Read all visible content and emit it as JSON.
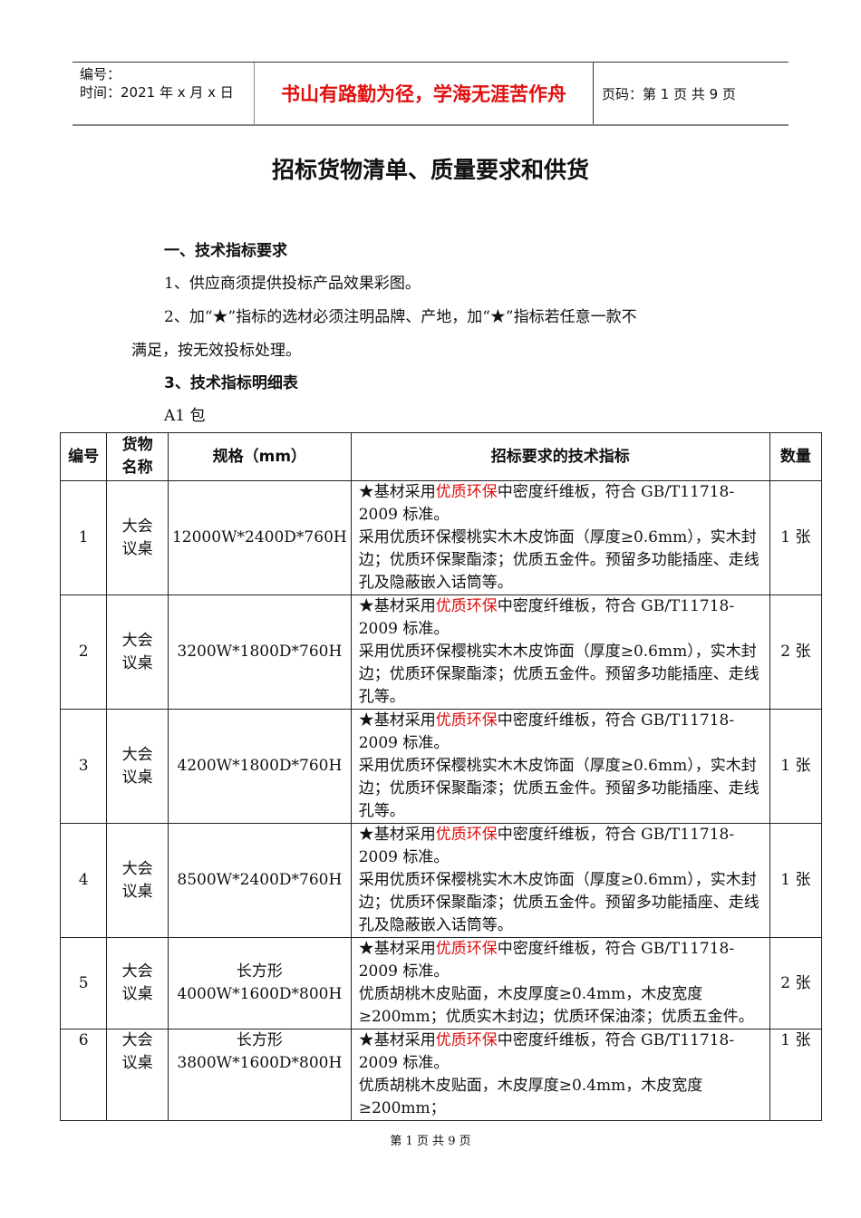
{
  "header": {
    "number_label": "编号：",
    "date_label": "时间：2021 年 x 月 x 日",
    "motto": "书山有路勤为径，学海无涯苦作舟",
    "page_info": "页码：第 1 页  共 9 页"
  },
  "title": "招标货物清单、质量要求和供货",
  "section1": "一、技术指标要求",
  "para1": "1、供应商须提供投标产品效果彩图。",
  "para2a": "2、加“★”指标的选材必须注明品牌、产地，加“★”指标若任意一款不",
  "para2b": "满足，按无效投标处理。",
  "section3": "3、技术指标明细表",
  "package": "A1 包",
  "table": {
    "headers": [
      "编号",
      "货物名称",
      "规格（mm）",
      "招标要求的技术指标",
      "数量"
    ],
    "rows": [
      {
        "no": "1",
        "name": "大会议桌",
        "spec_size": "12000W*2400D*760H",
        "pre": "★基材采用",
        "red": "优质环保",
        "post": "中密度纤维板，符合 GB/T11718-2009 标准。",
        "rest": "采用优质环保樱桃实木木皮饰面（厚度≥0.6mm），实木封边；优质环保聚酯漆；优质五金件。预留多功能插座、走线孔及隐蔽嵌入话筒等。",
        "qty": "1 张"
      },
      {
        "no": "2",
        "name": "大会议桌",
        "spec_size": "3200W*1800D*760H",
        "pre": "★基材采用",
        "red": "优质环保",
        "post": "中密度纤维板，符合 GB/T11718-2009 标准。",
        "rest": "采用优质环保樱桃实木木皮饰面（厚度≥0.6mm），实木封边；优质环保聚酯漆；优质五金件。预留多功能插座、走线孔等。",
        "qty": "2 张"
      },
      {
        "no": "3",
        "name": "大会议桌",
        "spec_size": "4200W*1800D*760H",
        "pre": "★基材采用",
        "red": "优质环保",
        "post": "中密度纤维板，符合 GB/T11718-2009 标准。",
        "rest": "采用优质环保樱桃实木木皮饰面（厚度≥0.6mm），实木封边；优质环保聚酯漆；优质五金件。预留多功能插座、走线孔等。",
        "qty": "1 张"
      },
      {
        "no": "4",
        "name": "大会议桌",
        "spec_size": "8500W*2400D*760H",
        "pre": "★基材采用",
        "red": "优质环保",
        "post": "中密度纤维板，符合 GB/T11718-2009 标准。",
        "rest": "采用优质环保樱桃实木木皮饰面（厚度≥0.6mm），实木封边；优质环保聚酯漆；优质五金件。预留多功能插座、走线孔及隐蔽嵌入话筒等。",
        "qty": "1 张"
      },
      {
        "no": "5",
        "name": "大会议桌",
        "spec_size": "长方形 4000W*1600D*800H",
        "pre": "★基材采用",
        "red": "优质环保",
        "post": "中密度纤维板，符合 GB/T11718-2009 标准。",
        "rest": "优质胡桃木皮贴面，木皮厚度≥0.4mm，木皮宽度≥200mm；优质实木封边；优质环保油漆；优质五金件。",
        "qty": "2 张"
      },
      {
        "no": "6",
        "name": "大会议桌",
        "spec_size": "长方形 3800W*1600D*800H",
        "pre": "★基材采用",
        "red": "优质环保",
        "post": "中密度纤维板，符合 GB/T11718-2009 标准。",
        "rest": "优质胡桃木皮贴面，木皮厚度≥0.4mm，木皮宽度≥200mm；",
        "qty": "1 张"
      }
    ]
  },
  "footer": "第 1 页 共 9 页",
  "colors": {
    "accent_red": "#e01010"
  }
}
